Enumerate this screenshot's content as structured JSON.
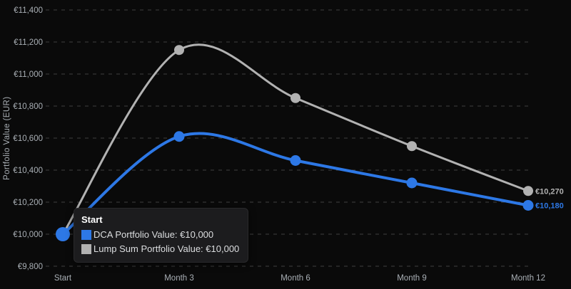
{
  "colors": {
    "background": "#0a0a0a",
    "gridline": "#404040",
    "axis_text": "#a9afb5",
    "tooltip_background": "#1c1c1e",
    "dca_blue": "#2d78e6",
    "lump_sum_gray": "#b2b2b2"
  },
  "chart_data": {
    "type": "line",
    "title": "",
    "xlabel": "",
    "ylabel": "Portfolio Value (EUR)",
    "categories": [
      "Start",
      "Month 3",
      "Month 6",
      "Month 9",
      "Month 12"
    ],
    "ylim": [
      9800,
      11400
    ],
    "ytick_step": 200,
    "grid": "horizontal-dashed",
    "legend_position": "none (colors shown in hover tooltip and end labels)",
    "y_ticks": [
      {
        "value": 9800,
        "label": "€9,800"
      },
      {
        "value": 10000,
        "label": "€10,000"
      },
      {
        "value": 10200,
        "label": "€10,200"
      },
      {
        "value": 10400,
        "label": "€10,400"
      },
      {
        "value": 10600,
        "label": "€10,600"
      },
      {
        "value": 10800,
        "label": "€10,800"
      },
      {
        "value": 11000,
        "label": "€11,000"
      },
      {
        "value": 11200,
        "label": "€11,200"
      },
      {
        "value": 11400,
        "label": "€11,400"
      }
    ],
    "series": [
      {
        "id": "dca",
        "name": "DCA Portfolio Value",
        "color": "#2d78e6",
        "values": [
          10000,
          10610,
          10460,
          10320,
          10180
        ],
        "end_label": "€10,180"
      },
      {
        "id": "lump-sum",
        "name": "Lump Sum Portfolio Value",
        "color": "#b2b2b2",
        "values": [
          10000,
          11150,
          10850,
          10550,
          10270
        ],
        "end_label": "€10,270"
      }
    ],
    "hovered_point": "Start"
  },
  "tooltip": {
    "title": "Start",
    "rows": [
      {
        "series": "dca",
        "label": "DCA Portfolio Value: €10,000"
      },
      {
        "series": "lump-sum",
        "label": "Lump Sum Portfolio Value: €10,000"
      }
    ]
  }
}
